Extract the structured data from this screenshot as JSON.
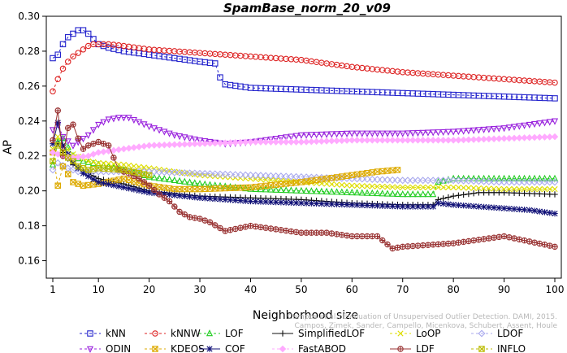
{
  "chart_data": {
    "type": "line",
    "title": "SpamBase_norm_20_v09",
    "xlabel": "Neighborhood size",
    "ylabel": "AP",
    "xlim": [
      1,
      100
    ],
    "ylim": [
      0.15,
      0.3
    ],
    "xticks": [
      1,
      10,
      20,
      30,
      40,
      50,
      60,
      70,
      80,
      90,
      100
    ],
    "yticks": [
      0.16,
      0.18,
      0.2,
      0.22,
      0.24,
      0.26,
      0.28,
      0.3
    ],
    "ytick_labels": [
      "0.16",
      "0.18",
      "0.20",
      "0.22",
      "0.24",
      "0.26",
      "0.28",
      "0.30"
    ],
    "grid": false,
    "legend_position": "bottom",
    "watermark_lines": [
      "Campos et al.: Evaluation of Unsupervised Outlier Detection. DAMI, 2015.",
      "Campos, Zimek, Sander, Campello, Micenkova, Schubert, Assent, Houle"
    ],
    "series": [
      {
        "name": "kNN",
        "color": "#2222cc",
        "marker": "square",
        "dash": "3,3",
        "points": [
          [
            1,
            0.276
          ],
          [
            2,
            0.278
          ],
          [
            3,
            0.284
          ],
          [
            4,
            0.288
          ],
          [
            5,
            0.29
          ],
          [
            6,
            0.292
          ],
          [
            7,
            0.292
          ],
          [
            8,
            0.29
          ],
          [
            9,
            0.287
          ],
          [
            10,
            0.284
          ],
          [
            12,
            0.282
          ],
          [
            15,
            0.28
          ],
          [
            20,
            0.278
          ],
          [
            25,
            0.276
          ],
          [
            30,
            0.274
          ],
          [
            33,
            0.273
          ],
          [
            34,
            0.265
          ],
          [
            35,
            0.261
          ],
          [
            40,
            0.259
          ],
          [
            50,
            0.258
          ],
          [
            60,
            0.257
          ],
          [
            70,
            0.256
          ],
          [
            80,
            0.255
          ],
          [
            90,
            0.254
          ],
          [
            100,
            0.253
          ]
        ]
      },
      {
        "name": "kNNW",
        "color": "#dd2222",
        "marker": "circle",
        "dash": "3,3",
        "points": [
          [
            1,
            0.257
          ],
          [
            2,
            0.264
          ],
          [
            3,
            0.27
          ],
          [
            4,
            0.274
          ],
          [
            5,
            0.277
          ],
          [
            6,
            0.279
          ],
          [
            7,
            0.281
          ],
          [
            8,
            0.283
          ],
          [
            9,
            0.284
          ],
          [
            10,
            0.284
          ],
          [
            12,
            0.284
          ],
          [
            15,
            0.283
          ],
          [
            20,
            0.281
          ],
          [
            30,
            0.279
          ],
          [
            40,
            0.277
          ],
          [
            50,
            0.275
          ],
          [
            60,
            0.271
          ],
          [
            70,
            0.268
          ],
          [
            80,
            0.266
          ],
          [
            90,
            0.264
          ],
          [
            100,
            0.262
          ]
        ]
      },
      {
        "name": "LOF",
        "color": "#22cc22",
        "marker": "triangle",
        "dash": "3,3",
        "points": [
          [
            1,
            0.215
          ],
          [
            2,
            0.228
          ],
          [
            3,
            0.23
          ],
          [
            4,
            0.225
          ],
          [
            5,
            0.22
          ],
          [
            7,
            0.217
          ],
          [
            10,
            0.215
          ],
          [
            15,
            0.212
          ],
          [
            20,
            0.208
          ],
          [
            30,
            0.204
          ],
          [
            40,
            0.201
          ],
          [
            50,
            0.2
          ],
          [
            60,
            0.199
          ],
          [
            70,
            0.198
          ],
          [
            76,
            0.198
          ],
          [
            77,
            0.205
          ],
          [
            80,
            0.207
          ],
          [
            90,
            0.207
          ],
          [
            100,
            0.207
          ]
        ]
      },
      {
        "name": "SimplifiedLOF",
        "color": "#111111",
        "marker": "plus",
        "dash": "",
        "points": [
          [
            1,
            0.222
          ],
          [
            2,
            0.227
          ],
          [
            3,
            0.222
          ],
          [
            5,
            0.215
          ],
          [
            8,
            0.21
          ],
          [
            10,
            0.207
          ],
          [
            15,
            0.204
          ],
          [
            20,
            0.2
          ],
          [
            30,
            0.197
          ],
          [
            40,
            0.196
          ],
          [
            50,
            0.195
          ],
          [
            60,
            0.193
          ],
          [
            70,
            0.192
          ],
          [
            76,
            0.192
          ],
          [
            77,
            0.195
          ],
          [
            80,
            0.197
          ],
          [
            85,
            0.199
          ],
          [
            90,
            0.199
          ],
          [
            100,
            0.198
          ]
        ]
      },
      {
        "name": "LoOP",
        "color": "#dddd00",
        "marker": "x",
        "dash": "3,3",
        "points": [
          [
            1,
            0.224
          ],
          [
            2,
            0.231
          ],
          [
            3,
            0.226
          ],
          [
            5,
            0.221
          ],
          [
            8,
            0.217
          ],
          [
            10,
            0.216
          ],
          [
            15,
            0.215
          ],
          [
            20,
            0.213
          ],
          [
            30,
            0.209
          ],
          [
            40,
            0.207
          ],
          [
            50,
            0.205
          ],
          [
            60,
            0.203
          ],
          [
            70,
            0.202
          ],
          [
            80,
            0.202
          ],
          [
            90,
            0.201
          ],
          [
            100,
            0.201
          ]
        ]
      },
      {
        "name": "LDOF",
        "color": "#aaaaee",
        "marker": "diamond",
        "dash": "3,3",
        "points": [
          [
            1,
            0.212
          ],
          [
            2,
            0.216
          ],
          [
            4,
            0.213
          ],
          [
            6,
            0.211
          ],
          [
            10,
            0.211
          ],
          [
            20,
            0.211
          ],
          [
            30,
            0.21
          ],
          [
            40,
            0.209
          ],
          [
            50,
            0.208
          ],
          [
            60,
            0.207
          ],
          [
            70,
            0.206
          ],
          [
            80,
            0.206
          ],
          [
            90,
            0.205
          ],
          [
            100,
            0.205
          ]
        ]
      },
      {
        "name": "ODIN",
        "color": "#9922dd",
        "marker": "triangle-down",
        "dash": "3,3",
        "points": [
          [
            1,
            0.235
          ],
          [
            2,
            0.238
          ],
          [
            3,
            0.231
          ],
          [
            5,
            0.226
          ],
          [
            8,
            0.232
          ],
          [
            10,
            0.238
          ],
          [
            12,
            0.241
          ],
          [
            14,
            0.242
          ],
          [
            16,
            0.242
          ],
          [
            20,
            0.237
          ],
          [
            25,
            0.232
          ],
          [
            30,
            0.229
          ],
          [
            35,
            0.227
          ],
          [
            40,
            0.228
          ],
          [
            45,
            0.23
          ],
          [
            50,
            0.232
          ],
          [
            60,
            0.233
          ],
          [
            70,
            0.233
          ],
          [
            80,
            0.234
          ],
          [
            90,
            0.236
          ],
          [
            100,
            0.24
          ]
        ]
      },
      {
        "name": "KDEOS",
        "color": "#ddaa00",
        "marker": "square-x",
        "dash": "3,3",
        "points": [
          [
            1,
            0.222
          ],
          [
            2,
            0.203
          ],
          [
            3,
            0.214
          ],
          [
            5,
            0.205
          ],
          [
            7,
            0.203
          ],
          [
            10,
            0.204
          ],
          [
            15,
            0.207
          ],
          [
            20,
            0.203
          ],
          [
            25,
            0.201
          ],
          [
            30,
            0.201
          ],
          [
            40,
            0.202
          ],
          [
            50,
            0.205
          ],
          [
            60,
            0.209
          ],
          [
            65,
            0.211
          ],
          [
            69,
            0.212
          ]
        ]
      },
      {
        "name": "COF",
        "color": "#111177",
        "marker": "asterisk",
        "dash": "",
        "points": [
          [
            1,
            0.227
          ],
          [
            2,
            0.239
          ],
          [
            3,
            0.226
          ],
          [
            5,
            0.216
          ],
          [
            7,
            0.21
          ],
          [
            10,
            0.205
          ],
          [
            15,
            0.202
          ],
          [
            20,
            0.199
          ],
          [
            30,
            0.196
          ],
          [
            40,
            0.194
          ],
          [
            50,
            0.193
          ],
          [
            60,
            0.192
          ],
          [
            70,
            0.191
          ],
          [
            76,
            0.191
          ],
          [
            77,
            0.193
          ],
          [
            80,
            0.192
          ],
          [
            85,
            0.191
          ],
          [
            90,
            0.19
          ],
          [
            95,
            0.189
          ],
          [
            100,
            0.187
          ]
        ]
      },
      {
        "name": "FastABOD",
        "color": "#ffaaff",
        "marker": "diamond-filled",
        "dash": "3,3",
        "points": [
          [
            1,
            0.222
          ],
          [
            3,
            0.22
          ],
          [
            5,
            0.219
          ],
          [
            8,
            0.22
          ],
          [
            10,
            0.222
          ],
          [
            15,
            0.224
          ],
          [
            20,
            0.226
          ],
          [
            30,
            0.227
          ],
          [
            40,
            0.228
          ],
          [
            50,
            0.228
          ],
          [
            60,
            0.229
          ],
          [
            70,
            0.229
          ],
          [
            80,
            0.229
          ],
          [
            90,
            0.23
          ],
          [
            100,
            0.231
          ]
        ]
      },
      {
        "name": "LDF",
        "color": "#993333",
        "marker": "circle-plus",
        "dash": "",
        "points": [
          [
            1,
            0.229
          ],
          [
            2,
            0.246
          ],
          [
            3,
            0.22
          ],
          [
            4,
            0.236
          ],
          [
            5,
            0.238
          ],
          [
            6,
            0.23
          ],
          [
            7,
            0.224
          ],
          [
            8,
            0.226
          ],
          [
            10,
            0.228
          ],
          [
            12,
            0.226
          ],
          [
            14,
            0.212
          ],
          [
            16,
            0.21
          ],
          [
            18,
            0.207
          ],
          [
            20,
            0.203
          ],
          [
            22,
            0.198
          ],
          [
            24,
            0.194
          ],
          [
            26,
            0.188
          ],
          [
            28,
            0.185
          ],
          [
            30,
            0.184
          ],
          [
            32,
            0.182
          ],
          [
            35,
            0.177
          ],
          [
            40,
            0.18
          ],
          [
            45,
            0.178
          ],
          [
            50,
            0.176
          ],
          [
            55,
            0.176
          ],
          [
            60,
            0.174
          ],
          [
            65,
            0.174
          ],
          [
            68,
            0.167
          ],
          [
            70,
            0.168
          ],
          [
            75,
            0.169
          ],
          [
            80,
            0.17
          ],
          [
            85,
            0.172
          ],
          [
            90,
            0.174
          ],
          [
            95,
            0.171
          ],
          [
            100,
            0.168
          ]
        ]
      },
      {
        "name": "INFLO",
        "color": "#bbbb00",
        "marker": "square-x",
        "dash": "3,3",
        "points": [
          [
            1,
            0.217
          ],
          [
            2,
            0.226
          ],
          [
            3,
            0.222
          ],
          [
            4,
            0.219
          ],
          [
            5,
            0.217
          ],
          [
            6,
            0.214
          ],
          [
            8,
            0.212
          ],
          [
            10,
            0.213
          ],
          [
            15,
            0.212
          ],
          [
            20,
            0.209
          ]
        ]
      }
    ]
  }
}
